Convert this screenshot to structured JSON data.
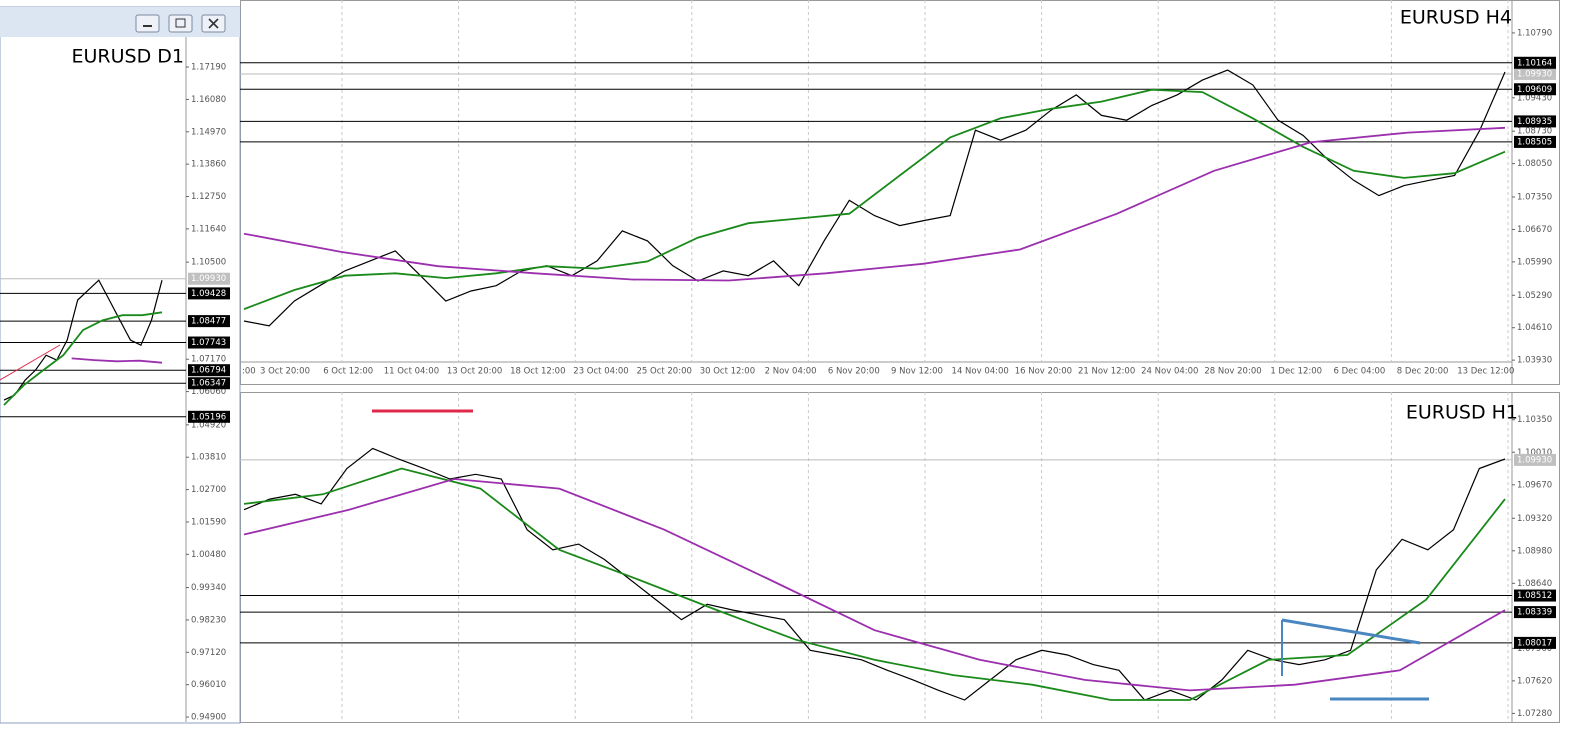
{
  "panels": [
    {
      "title": "EURUSD D1",
      "ylim": [
        0.9473,
        1.1822
      ],
      "price_ticks": [
        {
          "value": 1.1719,
          "label": "1.17190"
        },
        {
          "value": 1.1608,
          "label": "1.16080"
        },
        {
          "value": 1.1497,
          "label": "1.14970"
        },
        {
          "value": 1.1386,
          "label": "1.13860"
        },
        {
          "value": 1.1275,
          "label": "1.12750"
        },
        {
          "value": 1.1164,
          "label": "1.11640"
        },
        {
          "value": 1.105,
          "label": "1.10500"
        },
        {
          "value": 1.0717,
          "label": "1.07170"
        },
        {
          "value": 1.0606,
          "label": "1.06060"
        },
        {
          "value": 1.0492,
          "label": "1.04920"
        },
        {
          "value": 1.0381,
          "label": "1.03810"
        },
        {
          "value": 1.027,
          "label": "1.02700"
        },
        {
          "value": 1.0159,
          "label": "1.01590"
        },
        {
          "value": 1.0048,
          "label": "1.00480"
        },
        {
          "value": 0.9934,
          "label": "0.99340"
        },
        {
          "value": 0.9823,
          "label": "0.98230"
        },
        {
          "value": 0.9712,
          "label": "0.97120"
        },
        {
          "value": 0.9601,
          "label": "0.96010"
        },
        {
          "value": 0.949,
          "label": "0.94900"
        }
      ],
      "current": {
        "value": 1.0993,
        "label": "1.09930"
      },
      "levels": [
        {
          "value": 1.09428,
          "label": "1.09428"
        },
        {
          "value": 1.08477,
          "label": "1.08477"
        },
        {
          "value": 1.07743,
          "label": "1.07743"
        },
        {
          "value": 1.06794,
          "label": "1.06794"
        },
        {
          "value": 1.06347,
          "label": "1.06347"
        },
        {
          "value": 1.05196,
          "label": "1.05196"
        }
      ],
      "time_labels": [],
      "series": [
        {
          "name": "price",
          "color": "#000000",
          "values": [
            1.0577,
            1.0594,
            1.0645,
            1.068,
            1.0731,
            1.0714,
            1.0783,
            1.092,
            1.0954,
            1.0988,
            1.092,
            1.0851,
            1.0783,
            1.0765,
            1.0851,
            1.0988
          ]
        },
        {
          "name": "ma-fast",
          "color": "#1a8a1a",
          "values": [
            1.056,
            1.0628,
            1.068,
            1.0731,
            1.0817,
            1.0851,
            1.0868,
            1.0868,
            1.0878
          ]
        },
        {
          "name": "ma-slow",
          "color": "#9b2fae",
          "values": [
            null,
            null,
            null,
            1.072,
            1.0714,
            1.071,
            1.0712,
            1.0705
          ]
        }
      ]
    },
    {
      "title": "EURUSD H4",
      "ylim": [
        1.0343,
        1.1148
      ],
      "price_ticks": [
        {
          "value": 1.1079,
          "label": "1.10790"
        },
        {
          "value": 1.0943,
          "label": "1.09430"
        },
        {
          "value": 1.0873,
          "label": "1.08730"
        },
        {
          "value": 1.0805,
          "label": "1.08050"
        },
        {
          "value": 1.0735,
          "label": "1.07350"
        },
        {
          "value": 1.0667,
          "label": "1.06670"
        },
        {
          "value": 1.0599,
          "label": "1.05990"
        },
        {
          "value": 1.0529,
          "label": "1.05290"
        },
        {
          "value": 1.0461,
          "label": "1.04610"
        },
        {
          "value": 1.0393,
          "label": "1.03930"
        }
      ],
      "current": {
        "value": 1.0993,
        "label": "1.09930"
      },
      "levels": [
        {
          "value": 1.10164,
          "label": "1.10164"
        },
        {
          "value": 1.09609,
          "label": "1.09609"
        },
        {
          "value": 1.08935,
          "label": "1.08935"
        },
        {
          "value": 1.08505,
          "label": "1.08505"
        }
      ],
      "time_labels": [
        ":00",
        "3 Oct 20:00",
        "6 Oct 12:00",
        "11 Oct 04:00",
        "13 Oct 20:00",
        "18 Oct 12:00",
        "23 Oct 04:00",
        "25 Oct 20:00",
        "30 Oct 12:00",
        "2 Nov 04:00",
        "6 Nov 20:00",
        "9 Nov 12:00",
        "14 Nov 04:00",
        "16 Nov 20:00",
        "21 Nov 12:00",
        "24 Nov 04:00",
        "28 Nov 20:00",
        "1 Dec 12:00",
        "6 Dec 04:00",
        "8 Dec 20:00",
        "13 Dec 12:00"
      ],
      "series": [
        {
          "name": "price",
          "color": "#000000",
          "values": [
            1.0475,
            1.0465,
            1.0517,
            1.0549,
            1.058,
            1.0601,
            1.0622,
            1.057,
            1.0517,
            1.0538,
            1.0549,
            1.058,
            1.0591,
            1.057,
            1.0601,
            1.0664,
            1.0643,
            1.0591,
            1.0559,
            1.058,
            1.057,
            1.0601,
            1.0549,
            1.0643,
            1.0728,
            1.0696,
            1.0675,
            1.0686,
            1.0696,
            1.0875,
            1.0854,
            1.0875,
            1.0917,
            1.0949,
            1.0906,
            1.0896,
            1.0927,
            1.0949,
            1.098,
            1.1001,
            1.097,
            1.0896,
            1.0864,
            1.0812,
            1.077,
            1.0738,
            1.0759,
            1.077,
            1.078,
            1.0875,
            1.0997
          ]
        },
        {
          "name": "ma-fast",
          "color": "#1a8a1a",
          "values": [
            1.05,
            1.054,
            1.057,
            1.0575,
            1.0565,
            1.0575,
            1.059,
            1.0585,
            1.06,
            1.065,
            1.068,
            1.069,
            1.07,
            1.078,
            1.086,
            1.09,
            1.092,
            1.0935,
            1.096,
            1.0955,
            1.09,
            1.084,
            1.079,
            1.0775,
            1.0785,
            1.083
          ]
        },
        {
          "name": "ma-slow",
          "color": "#9b2fae",
          "values": [
            1.0658,
            1.062,
            1.059,
            1.0575,
            1.0562,
            1.056,
            1.0575,
            1.0595,
            1.0625,
            1.07,
            1.079,
            1.085,
            1.087,
            1.088
          ]
        }
      ]
    },
    {
      "title": "EURUSD H1",
      "ylim": [
        1.0719,
        1.1064
      ],
      "price_ticks": [
        {
          "value": 1.1035,
          "label": "1.10350"
        },
        {
          "value": 1.1001,
          "label": "1.10010"
        },
        {
          "value": 1.0967,
          "label": "1.09670"
        },
        {
          "value": 1.0932,
          "label": "1.09320"
        },
        {
          "value": 1.0898,
          "label": "1.08980"
        },
        {
          "value": 1.0864,
          "label": "1.08640"
        },
        {
          "value": 1.0796,
          "label": "1.07960"
        },
        {
          "value": 1.0762,
          "label": "1.07620"
        },
        {
          "value": 1.0728,
          "label": "1.07280"
        }
      ],
      "current": {
        "value": 1.0993,
        "label": "1.09930"
      },
      "levels": [
        {
          "value": 1.08512,
          "label": "1.08512"
        },
        {
          "value": 1.08339,
          "label": "1.08339"
        },
        {
          "value": 1.08017,
          "label": "1.08017"
        }
      ],
      "time_labels": [],
      "series": [
        {
          "name": "price",
          "color": "#000000",
          "values": [
            1.0941,
            1.0952,
            1.0957,
            1.0947,
            1.0984,
            1.1005,
            1.0994,
            1.0984,
            1.0973,
            1.0978,
            1.0973,
            1.092,
            1.0899,
            1.0905,
            1.0889,
            1.0868,
            1.0847,
            1.0826,
            1.0842,
            1.0836,
            1.0831,
            1.0826,
            1.0794,
            1.0789,
            1.0784,
            1.0773,
            1.0763,
            1.0752,
            1.0742,
            1.0763,
            1.0784,
            1.0794,
            1.0789,
            1.0779,
            1.0773,
            1.0742,
            1.0752,
            1.0742,
            1.0763,
            1.0794,
            1.0784,
            1.0779,
            1.0784,
            1.0794,
            1.0878,
            1.091,
            1.0899,
            1.092,
            1.0984,
            1.0994
          ]
        },
        {
          "name": "ma-fast",
          "color": "#1a8a1a",
          "values": [
            1.0947,
            1.0957,
            1.0984,
            1.0963,
            1.0899,
            1.0868,
            1.0836,
            1.0805,
            1.0784,
            1.0768,
            1.0758,
            1.0742,
            1.0742,
            1.0784,
            1.0789,
            1.0847,
            1.0952
          ]
        },
        {
          "name": "ma-slow",
          "color": "#9b2fae",
          "values": [
            1.0915,
            1.0941,
            1.0973,
            1.0963,
            1.092,
            1.0868,
            1.0815,
            1.0784,
            1.0763,
            1.0752,
            1.0758,
            1.0773,
            1.0836
          ]
        }
      ]
    }
  ]
}
